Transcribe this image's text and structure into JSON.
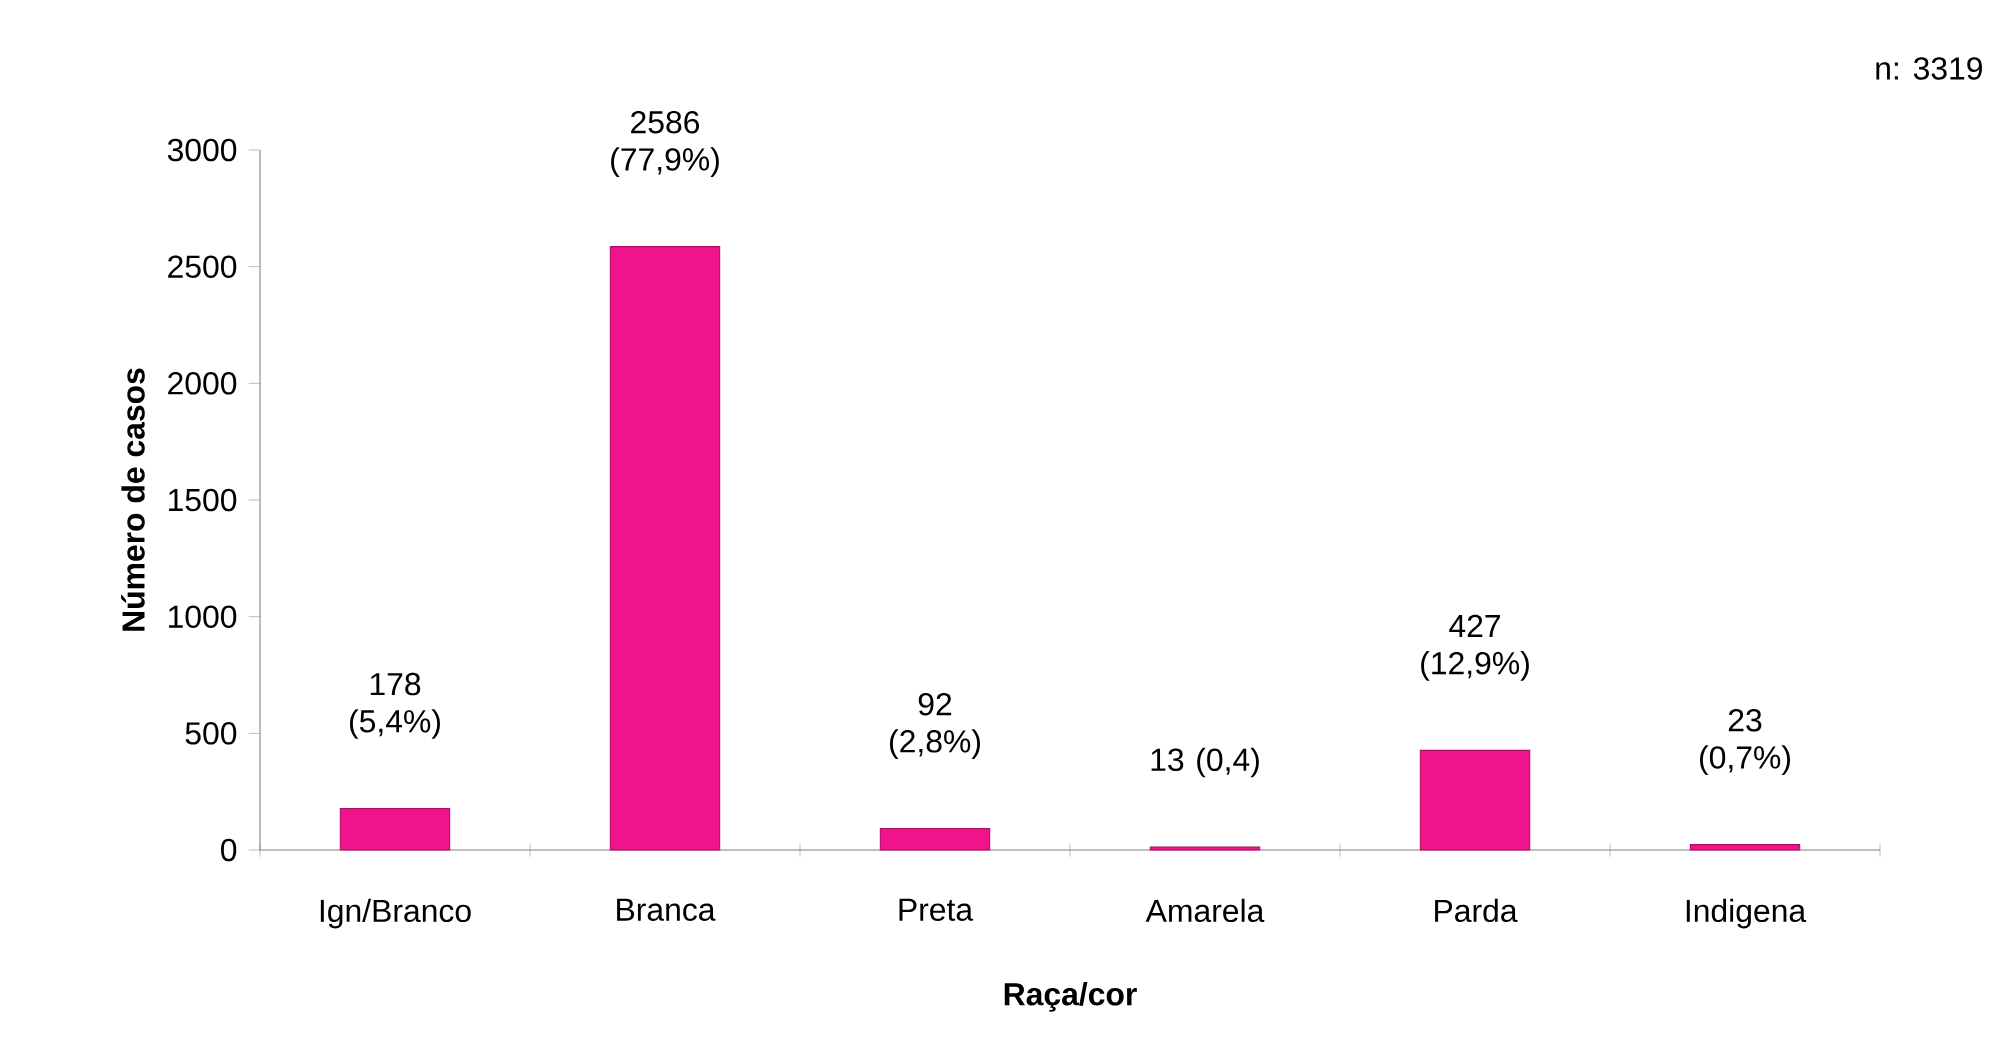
{
  "chart_data": {
    "type": "bar",
    "categories": [
      "Ign/Branco",
      "Branca",
      "Preta",
      "Amarela",
      "Parda",
      "Indigena"
    ],
    "values": [
      178,
      2586,
      92,
      13,
      427,
      23
    ],
    "value_labels": [
      "178 (5,4%)",
      "2586 (77,9%)",
      "92 (2,8%)",
      "13 (0,4)",
      "427 (12,9%)",
      "23 (0,7%)"
    ],
    "color": "#f0148c",
    "ylim": [
      0,
      3000
    ],
    "yticks": [
      0,
      500,
      1000,
      1500,
      2000,
      2500,
      3000
    ],
    "xlabel": "Raça/cor",
    "ylabel": "Número de casos",
    "annotations": [
      "n: 3319"
    ],
    "grid": false
  }
}
